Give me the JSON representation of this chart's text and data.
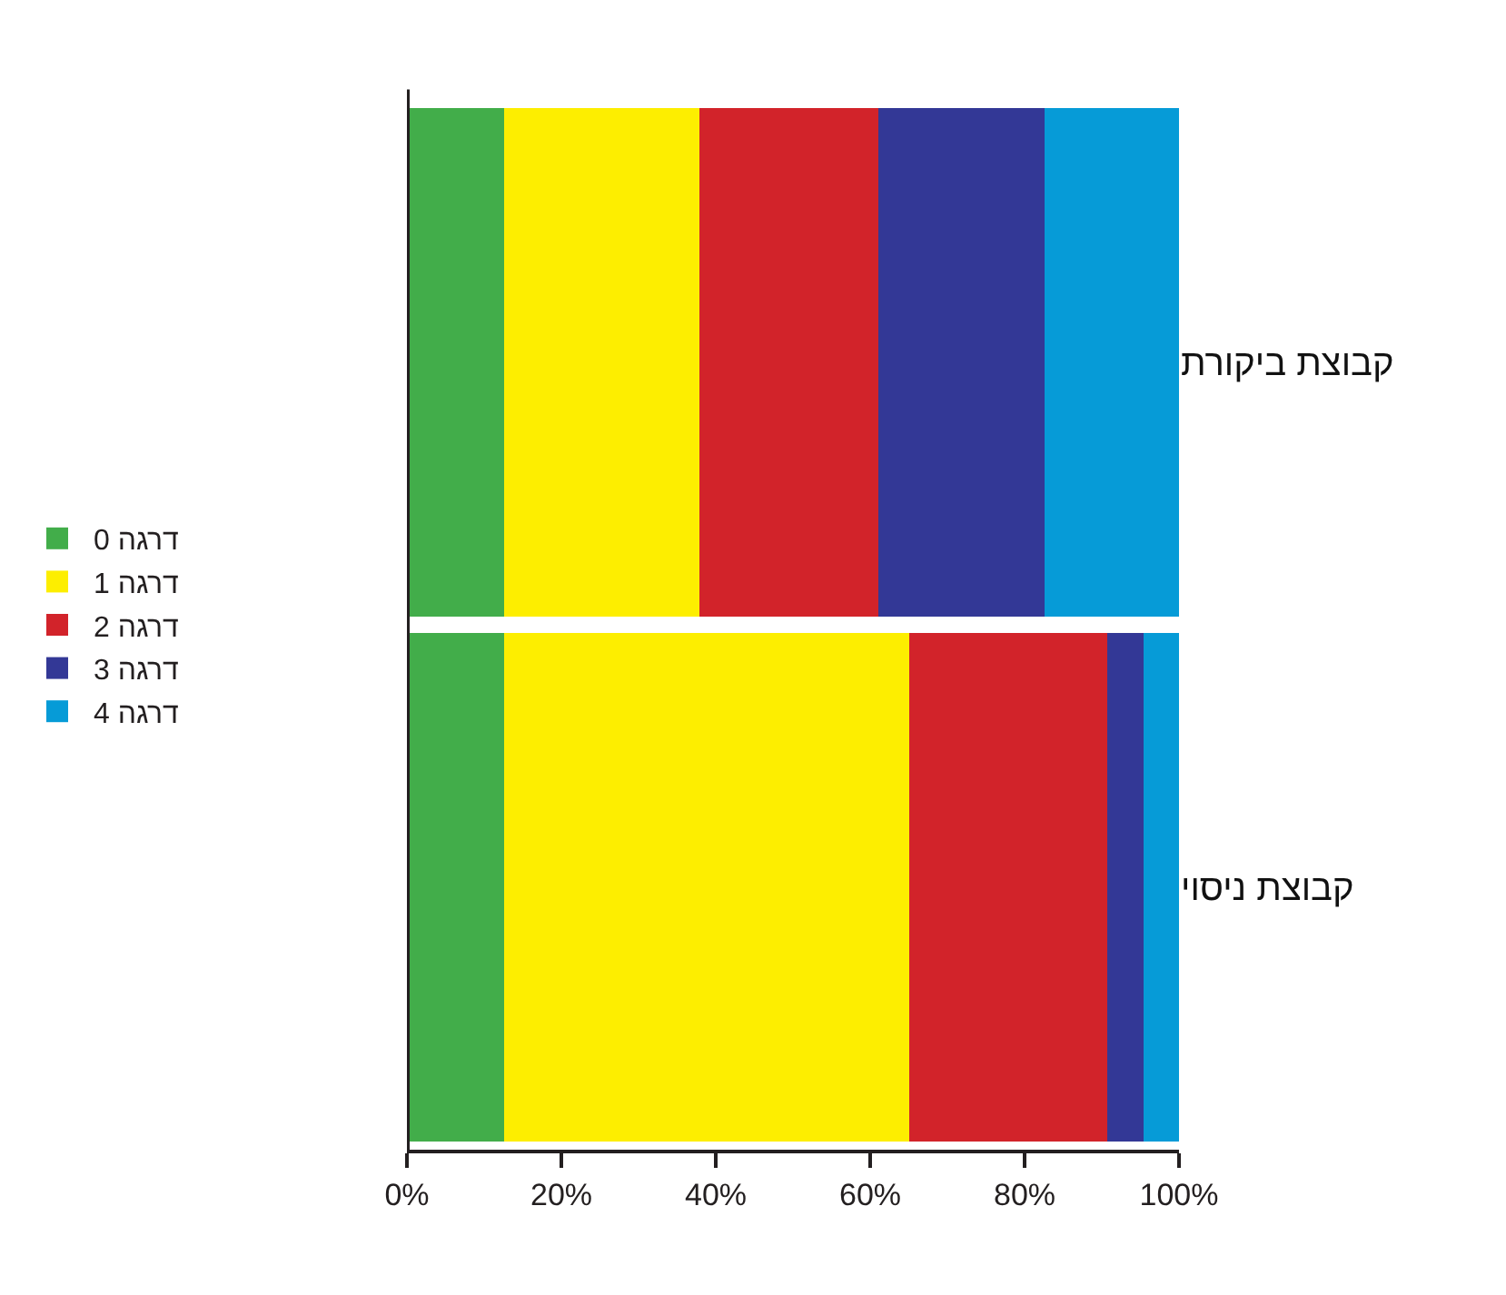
{
  "chart_data": {
    "type": "bar",
    "orientation": "horizontal",
    "stacked": true,
    "categories": [
      "קבוצת ביקורת",
      "קבוצת ניסוי"
    ],
    "series": [
      {
        "name": "דרגה 0",
        "color": "#42ad4a",
        "values": [
          12.6,
          12.6
        ]
      },
      {
        "name": "דרגה 1",
        "color": "#fdee00",
        "values": [
          25.3,
          52.5
        ]
      },
      {
        "name": "דרגה 2",
        "color": "#d2232a",
        "values": [
          23.2,
          25.6
        ]
      },
      {
        "name": "דרגה 3",
        "color": "#333896",
        "values": [
          21.5,
          4.7
        ]
      },
      {
        "name": "דרגה 4",
        "color": "#069bd7",
        "values": [
          17.4,
          4.6
        ]
      }
    ],
    "xlim": [
      0,
      100
    ],
    "xticks": [
      {
        "value": 0,
        "label": "0%"
      },
      {
        "value": 20,
        "label": "20%"
      },
      {
        "value": 40,
        "label": "40%"
      },
      {
        "value": 60,
        "label": "60%"
      },
      {
        "value": 80,
        "label": "80%"
      },
      {
        "value": 100,
        "label": "100%"
      }
    ],
    "legend": "left"
  }
}
